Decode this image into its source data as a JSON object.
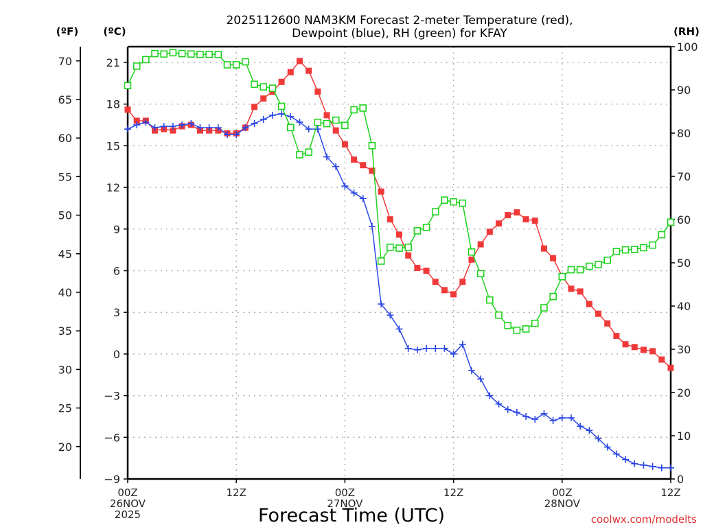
{
  "chart_data": {
    "type": "line",
    "title_line1": "2025112600 NAM3KM Forecast 2-meter Temperature (red),",
    "title_line2": "Dewpoint (blue), RH (green) for KFAY",
    "xlabel": "Forecast Time (UTC)",
    "left_outer_axis_label": "(ºF)",
    "left_inner_axis_label": "(ºC)",
    "right_axis_label": "(RH)",
    "credit": "coolwx.com/modelts",
    "x_range_hours": [
      0,
      60
    ],
    "x_ticks": [
      {
        "hour": 0,
        "lines": [
          "00Z",
          "26NOV",
          "2025"
        ]
      },
      {
        "hour": 12,
        "lines": [
          "12Z"
        ]
      },
      {
        "hour": 24,
        "lines": [
          "00Z",
          "27NOV"
        ]
      },
      {
        "hour": 36,
        "lines": [
          "12Z"
        ]
      },
      {
        "hour": 48,
        "lines": [
          "00Z",
          "28NOV"
        ]
      },
      {
        "hour": 60,
        "lines": [
          "12Z"
        ]
      }
    ],
    "celsius_range": [
      -9,
      22.1
    ],
    "celsius_ticks": [
      -9,
      -6,
      -3,
      0,
      3,
      6,
      9,
      12,
      15,
      18,
      21
    ],
    "fahrenheit_ticks": [
      20,
      25,
      30,
      35,
      40,
      45,
      50,
      55,
      60,
      65,
      70
    ],
    "rh_range": [
      0,
      100
    ],
    "rh_ticks": [
      0,
      10,
      20,
      30,
      40,
      50,
      60,
      70,
      80,
      90,
      100
    ],
    "grid": true,
    "colors": {
      "temperature": "#f03a3a",
      "dewpoint": "#2a46e8",
      "rh": "#1ed21e"
    },
    "series": [
      {
        "name": "Temperature",
        "units": "C",
        "marker": "filled-square",
        "values": [
          17.6,
          16.8,
          16.8,
          16.1,
          16.2,
          16.1,
          16.4,
          16.5,
          16.1,
          16.1,
          16.1,
          15.9,
          15.9,
          16.3,
          17.8,
          18.4,
          18.9,
          19.6,
          20.3,
          21.1,
          20.4,
          18.9,
          17.2,
          16.1,
          15.1,
          14.0,
          13.6,
          13.2,
          11.7,
          9.7,
          8.6,
          7.1,
          6.2,
          6.0,
          5.2,
          4.6,
          4.3,
          5.2,
          6.8,
          7.9,
          8.8,
          9.4,
          10.0,
          10.2,
          9.7,
          9.6,
          7.6,
          6.9,
          5.6,
          4.7,
          4.5,
          3.6,
          2.9,
          2.2,
          1.3,
          0.7,
          0.5,
          0.3,
          0.2,
          -0.4,
          -1.0
        ]
      },
      {
        "name": "Dewpoint",
        "units": "C",
        "marker": "plus",
        "values": [
          16.2,
          16.5,
          16.7,
          16.3,
          16.4,
          16.4,
          16.5,
          16.6,
          16.3,
          16.3,
          16.3,
          15.8,
          15.8,
          16.3,
          16.6,
          16.9,
          17.2,
          17.3,
          17.1,
          16.7,
          16.2,
          16.2,
          14.2,
          13.5,
          12.1,
          11.6,
          11.2,
          9.2,
          3.6,
          2.8,
          1.8,
          0.4,
          0.3,
          0.4,
          0.4,
          0.4,
          0.0,
          0.7,
          -1.2,
          -1.8,
          -3.0,
          -3.6,
          -4.0,
          -4.2,
          -4.5,
          -4.7,
          -4.3,
          -4.8,
          -4.6,
          -4.6,
          -5.2,
          -5.5,
          -6.1,
          -6.7,
          -7.2,
          -7.6,
          -7.9,
          -8.0,
          -8.1,
          -8.2,
          -8.2
        ]
      },
      {
        "name": "RH",
        "units": "%",
        "marker": "open-square",
        "values": [
          91.0,
          95.5,
          97.0,
          98.4,
          98.3,
          98.6,
          98.4,
          98.3,
          98.2,
          98.2,
          98.2,
          95.8,
          95.8,
          96.5,
          91.3,
          90.7,
          90.4,
          86.2,
          81.3,
          75.0,
          75.6,
          82.5,
          82.2,
          83.0,
          81.8,
          85.4,
          85.8,
          77.1,
          50.4,
          53.6,
          53.4,
          53.6,
          57.4,
          58.2,
          61.8,
          64.5,
          64.1,
          63.8,
          52.5,
          47.5,
          41.4,
          37.9,
          35.5,
          34.4,
          34.7,
          36.0,
          39.6,
          42.2,
          46.8,
          48.4,
          48.4,
          49.2,
          49.6,
          50.6,
          52.6,
          53.0,
          53.1,
          53.5,
          54.1,
          56.5,
          59.4
        ]
      }
    ]
  }
}
